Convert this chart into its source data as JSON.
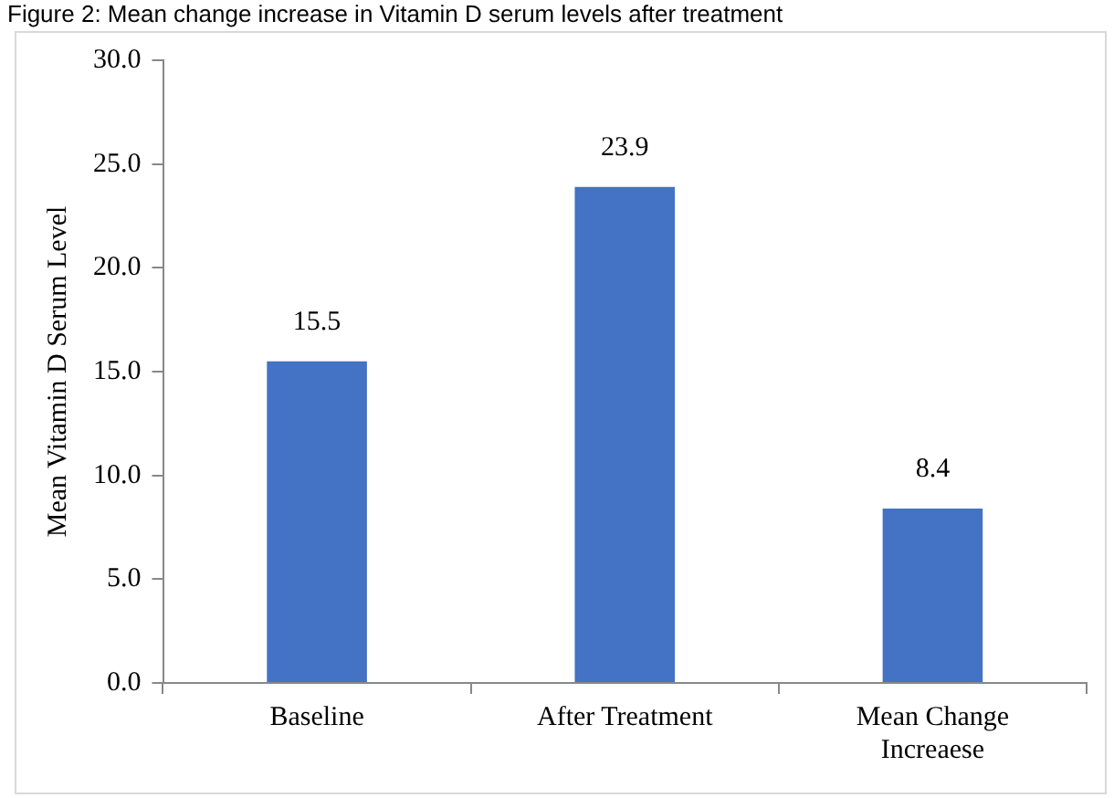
{
  "chart_data": {
    "type": "bar",
    "title": "Figure 2: Mean change increase in Vitamin D serum levels after treatment",
    "ylabel": "Mean Vitamin D Serum Level",
    "categories": [
      "Baseline",
      "After Treatment",
      "Mean Change Increaese"
    ],
    "values": [
      15.5,
      23.9,
      8.4
    ],
    "color": "#4472c4",
    "ylim": [
      0,
      30
    ],
    "yticks": [
      {
        "value": 0,
        "label": "0.0"
      },
      {
        "value": 5,
        "label": "5.0"
      },
      {
        "value": 10,
        "label": "10.0"
      },
      {
        "value": 15,
        "label": "15.0"
      },
      {
        "value": 20,
        "label": "20.0"
      },
      {
        "value": 25,
        "label": "25.0"
      },
      {
        "value": 30,
        "label": "30.0"
      }
    ],
    "grid": false,
    "legend": false,
    "data_labels": true
  }
}
